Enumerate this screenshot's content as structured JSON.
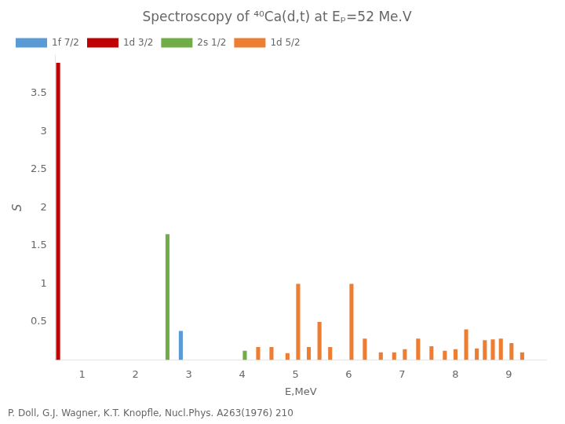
{
  "chart_data": {
    "type": "bar",
    "title": "Spectroscopy of ⁴⁰Ca(d,t) at Eₚ=52 Me.V",
    "x_label": "E,MeV",
    "y_label": "S",
    "annotations": [
      "P. Doll, G.J. Wagner, K.T. Knopfle, Nucl.Phys. A263(1976) 210"
    ],
    "xlim": [
      0.5,
      9.7
    ],
    "xticks": [
      1,
      2,
      3,
      4,
      5,
      6,
      7,
      8,
      9
    ],
    "ylim": [
      0,
      4.0
    ],
    "yticks": [
      0.5,
      1,
      1.5,
      2,
      2.5,
      3,
      3.5
    ],
    "grid": false,
    "legend": "upper left",
    "series": [
      {
        "name": "1f 7/2",
        "color": "#5b9bd5",
        "x": [
          2.85
        ],
        "values": [
          0.38
        ]
      },
      {
        "name": "1d 3/2",
        "color": "#c00000",
        "x": [
          0.55
        ],
        "values": [
          3.9
        ]
      },
      {
        "name": "2s 1/2",
        "color": "#70ad47",
        "x": [
          2.6,
          4.05
        ],
        "values": [
          1.65,
          0.12
        ]
      },
      {
        "name": "1d 5/2",
        "color": "#ed7d31",
        "x": [
          4.3,
          4.55,
          4.85,
          5.05,
          5.25,
          5.45,
          5.65,
          6.05,
          6.3,
          6.6,
          6.85,
          7.05,
          7.3,
          7.55,
          7.8,
          8.0,
          8.2,
          8.4,
          8.55,
          8.7,
          8.85,
          9.05,
          9.25
        ],
        "values": [
          0.17,
          0.17,
          0.09,
          1.0,
          0.17,
          0.5,
          0.17,
          1.0,
          0.28,
          0.1,
          0.1,
          0.14,
          0.28,
          0.18,
          0.12,
          0.14,
          0.4,
          0.15,
          0.26,
          0.27,
          0.28,
          0.22,
          0.1
        ]
      }
    ]
  }
}
